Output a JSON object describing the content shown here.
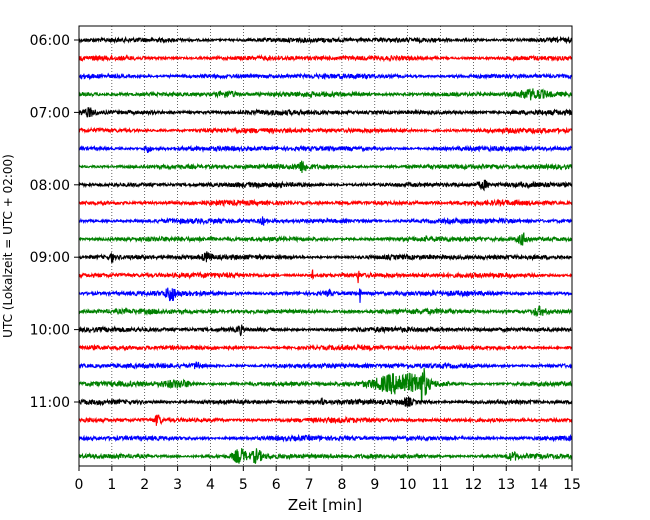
{
  "chart_data": {
    "type": "line",
    "subtype": "helicorder-seismogram",
    "title": "",
    "xlabel": "Zeit  [min]",
    "ylabel": "UTC (Lokalzeit = UTC + 02:00)",
    "xlim": [
      0,
      15
    ],
    "x_ticks": [
      "0",
      "1",
      "2",
      "3",
      "4",
      "5",
      "6",
      "7",
      "8",
      "9",
      "10",
      "11",
      "12",
      "13",
      "14",
      "15"
    ],
    "y_tick_labels": [
      "06:00",
      "07:00",
      "08:00",
      "09:00",
      "10:00",
      "11:00"
    ],
    "grid": "vertical dotted lines at each minute",
    "legend": "none",
    "trace_colors": [
      "#000000",
      "#ff0000",
      "#0000ff",
      "#008000"
    ],
    "trace_interval_minutes": 15,
    "traces": [
      {
        "start": "06:00",
        "color": "#000000",
        "events": []
      },
      {
        "start": "06:15",
        "color": "#ff0000",
        "events": []
      },
      {
        "start": "06:30",
        "color": "#0000ff",
        "events": []
      },
      {
        "start": "06:45",
        "color": "#008000",
        "events": [
          {
            "t": 13.8,
            "amp": 0.35,
            "dur": 0.9
          },
          {
            "t": 4.5,
            "amp": 0.2,
            "dur": 0.6
          }
        ]
      },
      {
        "start": "07:00",
        "color": "#000000",
        "events": [
          {
            "t": 0.3,
            "amp": 0.3,
            "dur": 0.4
          }
        ]
      },
      {
        "start": "07:15",
        "color": "#ff0000",
        "events": []
      },
      {
        "start": "07:30",
        "color": "#0000ff",
        "events": [
          {
            "t": 2.1,
            "amp": 0.3,
            "dur": 0.2
          }
        ]
      },
      {
        "start": "07:45",
        "color": "#008000",
        "events": [
          {
            "t": 6.8,
            "amp": 0.35,
            "dur": 0.3
          }
        ]
      },
      {
        "start": "08:00",
        "color": "#000000",
        "events": [
          {
            "t": 12.3,
            "amp": 0.3,
            "dur": 0.3
          }
        ]
      },
      {
        "start": "08:15",
        "color": "#ff0000",
        "events": []
      },
      {
        "start": "08:30",
        "color": "#0000ff",
        "events": [
          {
            "t": 5.6,
            "amp": 0.25,
            "dur": 0.2
          }
        ]
      },
      {
        "start": "08:45",
        "color": "#008000",
        "events": [
          {
            "t": 13.5,
            "amp": 0.4,
            "dur": 0.3
          }
        ]
      },
      {
        "start": "09:00",
        "color": "#000000",
        "events": [
          {
            "t": 1.0,
            "amp": 0.35,
            "dur": 0.1
          },
          {
            "t": 3.9,
            "amp": 0.3,
            "dur": 0.3
          }
        ]
      },
      {
        "start": "09:15",
        "color": "#ff0000",
        "events": [
          {
            "t": 7.1,
            "amp": 0.5,
            "dur": 0.05
          },
          {
            "t": 8.5,
            "amp": 0.55,
            "dur": 0.05
          }
        ]
      },
      {
        "start": "09:30",
        "color": "#0000ff",
        "events": [
          {
            "t": 2.8,
            "amp": 0.5,
            "dur": 0.3
          },
          {
            "t": 8.55,
            "amp": 0.9,
            "dur": 0.05
          },
          {
            "t": 7.6,
            "amp": 0.3,
            "dur": 0.1
          }
        ]
      },
      {
        "start": "09:45",
        "color": "#008000",
        "events": [
          {
            "t": 14.0,
            "amp": 0.3,
            "dur": 0.4
          }
        ]
      },
      {
        "start": "10:00",
        "color": "#000000",
        "events": [
          {
            "t": 4.9,
            "amp": 0.3,
            "dur": 0.2
          }
        ]
      },
      {
        "start": "10:15",
        "color": "#ff0000",
        "events": []
      },
      {
        "start": "10:30",
        "color": "#0000ff",
        "events": [
          {
            "t": 3.6,
            "amp": 0.3,
            "dur": 0.2
          }
        ]
      },
      {
        "start": "10:45",
        "color": "#008000",
        "events": [
          {
            "t": 9.8,
            "amp": 0.7,
            "dur": 1.6
          },
          {
            "t": 10.45,
            "amp": 0.95,
            "dur": 0.25
          },
          {
            "t": 3.0,
            "amp": 0.25,
            "dur": 1.0
          }
        ]
      },
      {
        "start": "11:00",
        "color": "#000000",
        "events": [
          {
            "t": 10.0,
            "amp": 0.3,
            "dur": 0.3
          },
          {
            "t": 7.4,
            "amp": 0.3,
            "dur": 0.1
          }
        ]
      },
      {
        "start": "11:15",
        "color": "#ff0000",
        "events": [
          {
            "t": 2.4,
            "amp": 0.4,
            "dur": 0.2
          }
        ]
      },
      {
        "start": "11:30",
        "color": "#0000ff",
        "events": []
      },
      {
        "start": "11:45",
        "color": "#008000",
        "events": [
          {
            "t": 4.9,
            "amp": 0.5,
            "dur": 0.4
          },
          {
            "t": 5.4,
            "amp": 0.45,
            "dur": 0.3
          },
          {
            "t": 13.2,
            "amp": 0.25,
            "dur": 0.3
          }
        ]
      }
    ]
  }
}
